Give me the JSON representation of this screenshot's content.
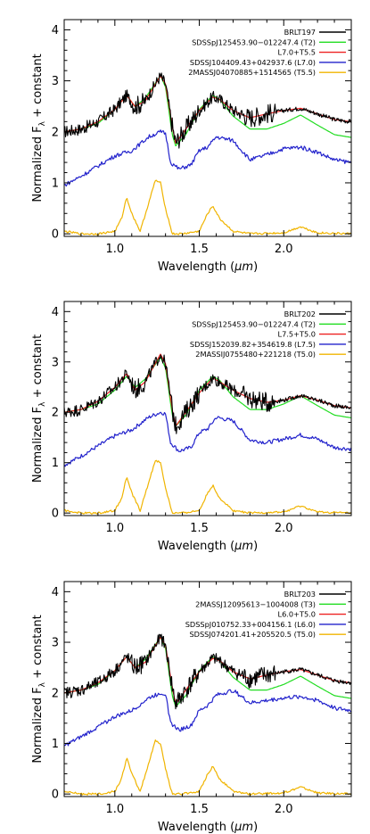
{
  "chart_data": [
    {
      "type": "line",
      "xlabel": "Wavelength (μm)",
      "ylabel": "Normalized F_λ + constant",
      "xlim": [
        0.7,
        2.4
      ],
      "ylim": [
        -0.05,
        4.2
      ],
      "xticks": [
        "1.0",
        "1.5",
        "2.0"
      ],
      "yticks": [
        "0",
        "1",
        "2",
        "3",
        "4"
      ],
      "legend_position": "top-right",
      "series": [
        {
          "name": "BRLT197",
          "color": "#000000",
          "offset": 2.0,
          "scale": 1.1,
          "noise": 0.12,
          "x": [
            0.7,
            0.8,
            0.9,
            1.0,
            1.07,
            1.12,
            1.18,
            1.27,
            1.3,
            1.34,
            1.36,
            1.42,
            1.5,
            1.58,
            1.62,
            1.7,
            1.8,
            1.9,
            2.0,
            2.1,
            2.2,
            2.3,
            2.4
          ],
          "values": [
            0.0,
            0.05,
            0.18,
            0.4,
            0.65,
            0.45,
            0.55,
            1.0,
            0.85,
            0.1,
            -0.2,
            0.05,
            0.38,
            0.62,
            0.58,
            0.38,
            0.25,
            0.32,
            0.38,
            0.42,
            0.32,
            0.22,
            0.18
          ]
        },
        {
          "name": "SDSSpJ125453.90−012247.4 (T2)",
          "color": "#22dd22",
          "offset": 2.0,
          "scale": 1.1,
          "noise": 0,
          "x": [
            0.7,
            0.8,
            0.9,
            1.0,
            1.07,
            1.12,
            1.18,
            1.27,
            1.3,
            1.34,
            1.36,
            1.42,
            1.5,
            1.58,
            1.62,
            1.7,
            1.8,
            1.9,
            2.0,
            2.1,
            2.2,
            2.3,
            2.4
          ],
          "values": [
            0.0,
            0.05,
            0.15,
            0.4,
            0.65,
            0.45,
            0.6,
            1.0,
            0.8,
            -0.05,
            -0.25,
            -0.05,
            0.4,
            0.65,
            0.58,
            0.28,
            0.05,
            0.05,
            0.15,
            0.3,
            0.12,
            -0.05,
            -0.1
          ]
        },
        {
          "name": "L7.0+T5.5",
          "color": "#ee2222",
          "offset": 2.0,
          "scale": 1.1,
          "noise": 0,
          "x": [
            0.7,
            0.8,
            0.9,
            1.0,
            1.07,
            1.12,
            1.18,
            1.27,
            1.3,
            1.34,
            1.36,
            1.42,
            1.5,
            1.58,
            1.62,
            1.7,
            1.8,
            1.9,
            2.0,
            2.1,
            2.2,
            2.3,
            2.4
          ],
          "values": [
            0.0,
            0.05,
            0.18,
            0.4,
            0.65,
            0.45,
            0.55,
            1.0,
            0.85,
            0.1,
            -0.2,
            0.05,
            0.38,
            0.62,
            0.58,
            0.38,
            0.25,
            0.32,
            0.38,
            0.42,
            0.32,
            0.22,
            0.18
          ]
        },
        {
          "name": "SDSSJ104409.43+042937.6 (L7.0)",
          "color": "#2222cc",
          "offset": 0.85,
          "scale": 1.0,
          "noise": 0.04,
          "x": [
            0.7,
            0.8,
            0.9,
            1.0,
            1.1,
            1.2,
            1.27,
            1.3,
            1.33,
            1.38,
            1.45,
            1.5,
            1.55,
            1.6,
            1.7,
            1.8,
            1.9,
            2.0,
            2.1,
            2.2,
            2.3,
            2.4
          ],
          "values": [
            0.1,
            0.28,
            0.48,
            0.68,
            0.78,
            1.05,
            1.15,
            1.12,
            0.55,
            0.42,
            0.5,
            0.78,
            0.85,
            1.05,
            0.98,
            0.6,
            0.7,
            0.82,
            0.85,
            0.75,
            0.6,
            0.55
          ]
        },
        {
          "name": "2MASSJ04070885+1514565 (T5.5)",
          "color": "#f0b400",
          "offset": 0.0,
          "scale": 1.0,
          "noise": 0.02,
          "x": [
            0.7,
            0.8,
            0.9,
            1.0,
            1.04,
            1.07,
            1.1,
            1.15,
            1.2,
            1.24,
            1.27,
            1.3,
            1.34,
            1.4,
            1.5,
            1.55,
            1.58,
            1.62,
            1.7,
            1.8,
            2.0,
            2.05,
            2.1,
            2.15,
            2.2,
            2.4
          ],
          "values": [
            0.05,
            0.0,
            0.0,
            0.05,
            0.3,
            0.72,
            0.4,
            0.05,
            0.6,
            1.05,
            1.0,
            0.5,
            0.0,
            0.0,
            0.05,
            0.4,
            0.55,
            0.3,
            0.05,
            0.0,
            0.02,
            0.08,
            0.14,
            0.08,
            0.02,
            0.0
          ]
        }
      ]
    },
    {
      "type": "line",
      "xlabel": "Wavelength (μm)",
      "ylabel": "Normalized F_λ + constant",
      "xlim": [
        0.7,
        2.4
      ],
      "ylim": [
        -0.05,
        4.2
      ],
      "xticks": [
        "1.0",
        "1.5",
        "2.0"
      ],
      "yticks": [
        "0",
        "1",
        "2",
        "3",
        "4"
      ],
      "legend_position": "top-right",
      "series": [
        {
          "name": "BRLT202",
          "color": "#000000",
          "offset": 2.0,
          "scale": 1.1,
          "noise": 0.12,
          "x": [
            0.7,
            0.8,
            0.9,
            1.0,
            1.07,
            1.12,
            1.18,
            1.27,
            1.3,
            1.34,
            1.36,
            1.42,
            1.5,
            1.58,
            1.62,
            1.7,
            1.8,
            1.9,
            2.0,
            2.1,
            2.2,
            2.3,
            2.4
          ],
          "values": [
            0.0,
            0.05,
            0.2,
            0.45,
            0.7,
            0.4,
            0.55,
            1.05,
            0.88,
            0.05,
            -0.25,
            0.0,
            0.35,
            0.62,
            0.55,
            0.4,
            0.25,
            0.18,
            0.22,
            0.3,
            0.22,
            0.12,
            0.08
          ]
        },
        {
          "name": "SDSSpJ125453.90−012247.4 (T2)",
          "color": "#22dd22",
          "offset": 2.0,
          "scale": 1.1,
          "noise": 0,
          "x": [
            0.7,
            0.8,
            0.9,
            1.0,
            1.07,
            1.12,
            1.18,
            1.27,
            1.3,
            1.34,
            1.36,
            1.42,
            1.5,
            1.58,
            1.62,
            1.7,
            1.8,
            1.9,
            2.0,
            2.1,
            2.2,
            2.3,
            2.4
          ],
          "values": [
            0.0,
            0.05,
            0.15,
            0.4,
            0.65,
            0.45,
            0.6,
            1.0,
            0.8,
            -0.05,
            -0.25,
            -0.05,
            0.4,
            0.65,
            0.58,
            0.28,
            0.05,
            0.05,
            0.15,
            0.3,
            0.12,
            -0.05,
            -0.1
          ]
        },
        {
          "name": "L7.5+T5.0",
          "color": "#ee2222",
          "offset": 2.0,
          "scale": 1.1,
          "noise": 0,
          "x": [
            0.7,
            0.8,
            0.9,
            1.0,
            1.07,
            1.12,
            1.18,
            1.27,
            1.3,
            1.34,
            1.36,
            1.42,
            1.5,
            1.58,
            1.62,
            1.7,
            1.8,
            1.9,
            2.0,
            2.1,
            2.2,
            2.3,
            2.4
          ],
          "values": [
            0.0,
            0.05,
            0.2,
            0.45,
            0.7,
            0.4,
            0.55,
            1.05,
            0.88,
            0.05,
            -0.25,
            0.0,
            0.35,
            0.62,
            0.55,
            0.4,
            0.25,
            0.18,
            0.22,
            0.3,
            0.22,
            0.12,
            0.08
          ]
        },
        {
          "name": "SDSSJ152039.82+354619.8 (L7.5)",
          "color": "#2222cc",
          "offset": 0.85,
          "scale": 1.0,
          "noise": 0.04,
          "x": [
            0.7,
            0.8,
            0.9,
            1.0,
            1.1,
            1.2,
            1.27,
            1.3,
            1.33,
            1.38,
            1.45,
            1.5,
            1.55,
            1.6,
            1.7,
            1.8,
            1.9,
            2.0,
            2.1,
            2.2,
            2.3,
            2.4
          ],
          "values": [
            0.1,
            0.28,
            0.48,
            0.68,
            0.8,
            1.05,
            1.15,
            1.12,
            0.55,
            0.38,
            0.45,
            0.75,
            0.82,
            1.05,
            0.98,
            0.6,
            0.55,
            0.62,
            0.7,
            0.62,
            0.45,
            0.42
          ]
        },
        {
          "name": "2MASSIJ0755480+221218 (T5.0)",
          "color": "#f0b400",
          "offset": 0.0,
          "scale": 1.0,
          "noise": 0.02,
          "x": [
            0.7,
            0.8,
            0.9,
            1.0,
            1.04,
            1.07,
            1.1,
            1.15,
            1.2,
            1.24,
            1.27,
            1.3,
            1.34,
            1.4,
            1.5,
            1.55,
            1.58,
            1.62,
            1.7,
            1.8,
            2.0,
            2.05,
            2.1,
            2.15,
            2.2,
            2.4
          ],
          "values": [
            0.05,
            0.0,
            0.0,
            0.05,
            0.3,
            0.72,
            0.4,
            0.05,
            0.6,
            1.05,
            1.0,
            0.5,
            0.0,
            0.0,
            0.05,
            0.4,
            0.55,
            0.3,
            0.05,
            0.0,
            0.02,
            0.08,
            0.14,
            0.08,
            0.02,
            0.0
          ]
        }
      ]
    },
    {
      "type": "line",
      "xlabel": "Wavelength (μm)",
      "ylabel": "Normalized F_λ + constant",
      "xlim": [
        0.7,
        2.4
      ],
      "ylim": [
        -0.05,
        4.2
      ],
      "xticks": [
        "1.0",
        "1.5",
        "2.0"
      ],
      "yticks": [
        "0",
        "1",
        "2",
        "3",
        "4"
      ],
      "legend_position": "top-right",
      "series": [
        {
          "name": "BRLT203",
          "color": "#000000",
          "offset": 2.0,
          "scale": 1.1,
          "noise": 0.12,
          "x": [
            0.7,
            0.8,
            0.9,
            1.0,
            1.07,
            1.12,
            1.18,
            1.27,
            1.3,
            1.34,
            1.36,
            1.42,
            1.5,
            1.58,
            1.62,
            1.7,
            1.8,
            1.9,
            2.0,
            2.1,
            2.2,
            2.3,
            2.4
          ],
          "values": [
            0.0,
            0.05,
            0.18,
            0.4,
            0.65,
            0.45,
            0.55,
            1.0,
            0.85,
            0.1,
            -0.2,
            0.05,
            0.38,
            0.62,
            0.58,
            0.38,
            0.25,
            0.32,
            0.38,
            0.42,
            0.32,
            0.22,
            0.18
          ]
        },
        {
          "name": "2MASSJ12095613−1004008 (T3)",
          "color": "#22dd22",
          "offset": 2.0,
          "scale": 1.1,
          "noise": 0,
          "x": [
            0.7,
            0.8,
            0.9,
            1.0,
            1.07,
            1.12,
            1.18,
            1.27,
            1.3,
            1.34,
            1.36,
            1.42,
            1.5,
            1.58,
            1.62,
            1.7,
            1.8,
            1.9,
            2.0,
            2.1,
            2.2,
            2.3,
            2.4
          ],
          "values": [
            0.0,
            0.05,
            0.15,
            0.4,
            0.65,
            0.45,
            0.6,
            1.0,
            0.8,
            -0.05,
            -0.25,
            -0.05,
            0.4,
            0.65,
            0.58,
            0.28,
            0.05,
            0.05,
            0.15,
            0.3,
            0.12,
            -0.05,
            -0.1
          ]
        },
        {
          "name": "L6.0+T5.0",
          "color": "#ee2222",
          "offset": 2.0,
          "scale": 1.1,
          "noise": 0,
          "x": [
            0.7,
            0.8,
            0.9,
            1.0,
            1.07,
            1.12,
            1.18,
            1.27,
            1.3,
            1.34,
            1.36,
            1.42,
            1.5,
            1.58,
            1.62,
            1.7,
            1.8,
            1.9,
            2.0,
            2.1,
            2.2,
            2.3,
            2.4
          ],
          "values": [
            0.0,
            0.05,
            0.18,
            0.4,
            0.65,
            0.45,
            0.55,
            1.0,
            0.85,
            0.1,
            -0.2,
            0.05,
            0.38,
            0.62,
            0.58,
            0.38,
            0.25,
            0.32,
            0.38,
            0.42,
            0.32,
            0.22,
            0.18
          ]
        },
        {
          "name": "SDSSpJ010752.33+004156.1 (L6.0)",
          "color": "#2222cc",
          "offset": 0.85,
          "scale": 1.0,
          "noise": 0.04,
          "x": [
            0.7,
            0.8,
            0.9,
            1.0,
            1.1,
            1.2,
            1.27,
            1.3,
            1.33,
            1.38,
            1.45,
            1.5,
            1.55,
            1.6,
            1.7,
            1.8,
            1.9,
            2.0,
            2.1,
            2.2,
            2.3,
            2.4
          ],
          "values": [
            0.1,
            0.28,
            0.48,
            0.68,
            0.8,
            1.05,
            1.15,
            1.12,
            0.55,
            0.42,
            0.5,
            0.8,
            0.9,
            1.1,
            1.2,
            0.95,
            1.0,
            1.05,
            1.08,
            1.0,
            0.85,
            0.8
          ]
        },
        {
          "name": "SDSSJ074201.41+205520.5 (T5.0)",
          "color": "#f0b400",
          "offset": 0.0,
          "scale": 1.0,
          "noise": 0.02,
          "x": [
            0.7,
            0.8,
            0.9,
            1.0,
            1.04,
            1.07,
            1.1,
            1.15,
            1.2,
            1.24,
            1.27,
            1.3,
            1.34,
            1.4,
            1.5,
            1.55,
            1.58,
            1.62,
            1.7,
            1.8,
            2.0,
            2.05,
            2.1,
            2.15,
            2.2,
            2.4
          ],
          "values": [
            0.05,
            0.0,
            0.0,
            0.05,
            0.3,
            0.72,
            0.4,
            0.05,
            0.6,
            1.05,
            1.0,
            0.5,
            0.0,
            0.0,
            0.05,
            0.4,
            0.55,
            0.3,
            0.05,
            0.0,
            0.02,
            0.08,
            0.14,
            0.08,
            0.02,
            0.0
          ]
        }
      ]
    }
  ]
}
